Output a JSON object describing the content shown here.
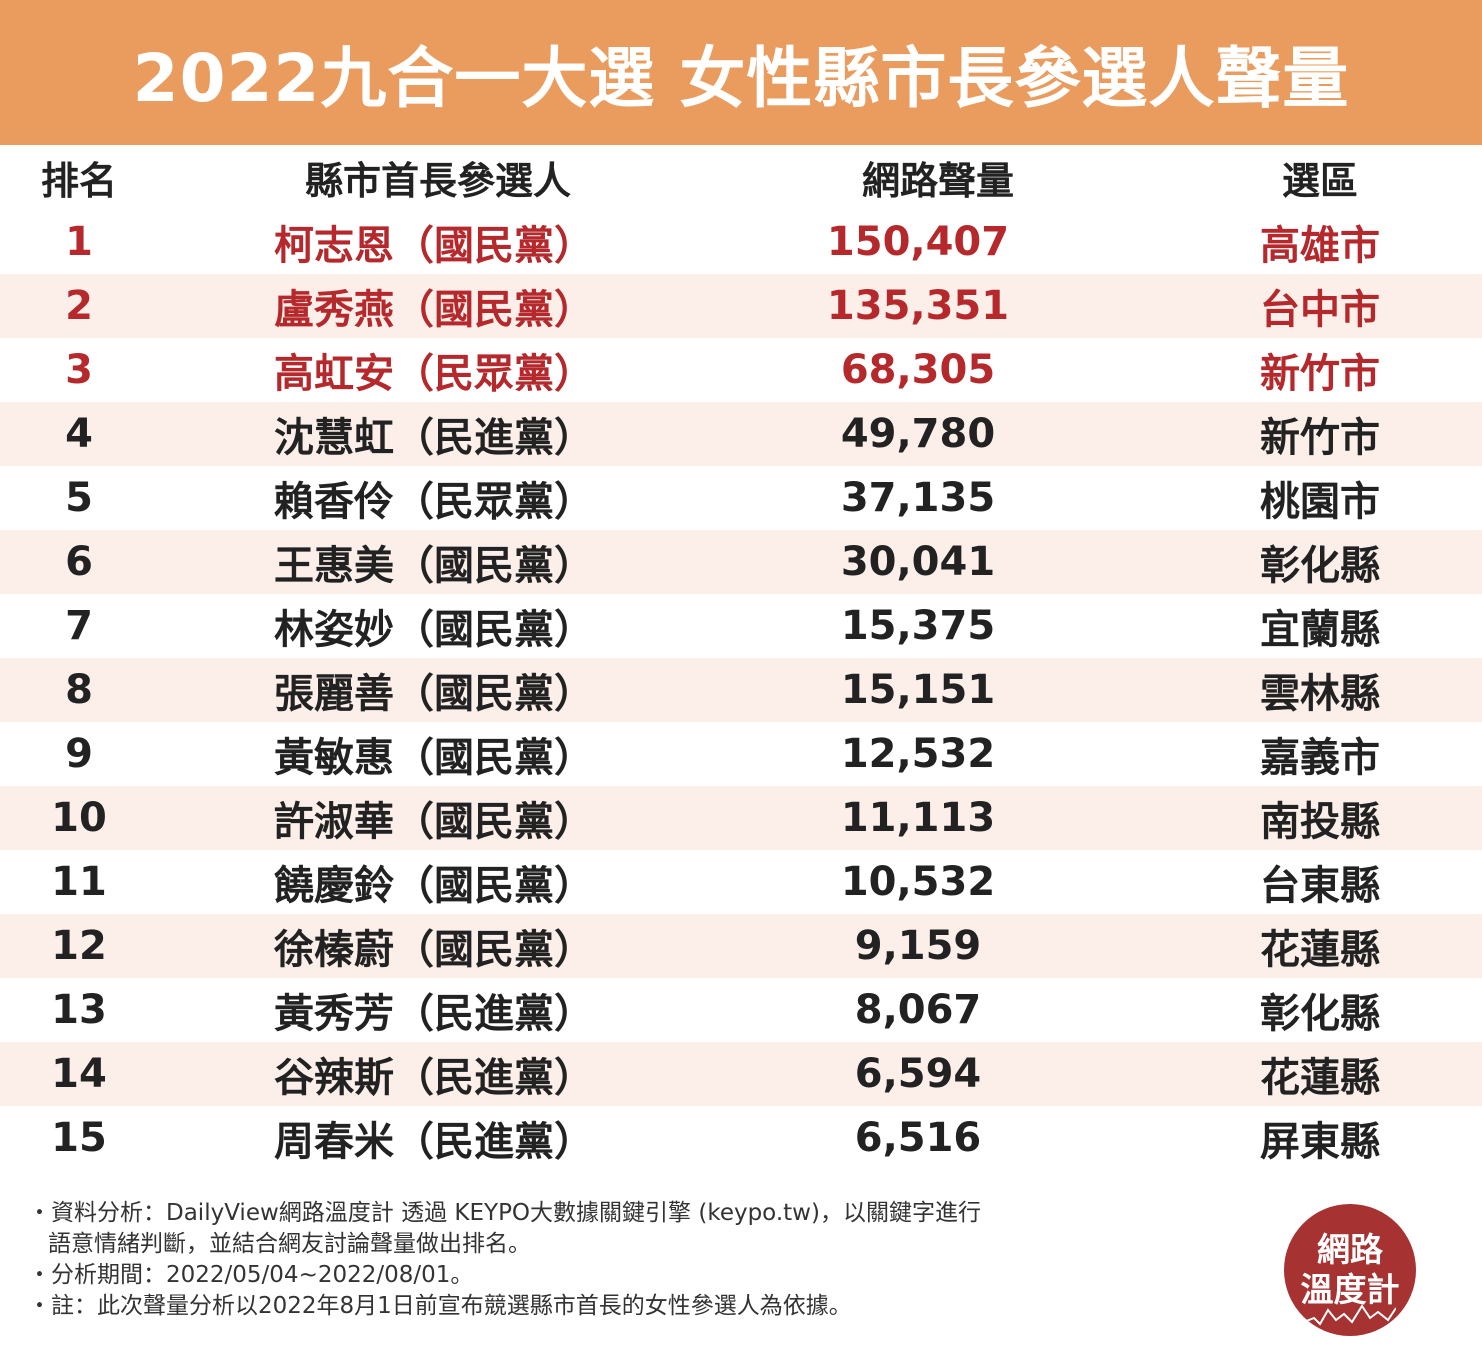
{
  "title": "2022九合一大選 女性縣市長參選人聲量",
  "headers": {
    "rank": "排名",
    "candidate": "縣市首長參選人",
    "volume": "網路聲量",
    "district": "選區"
  },
  "rows": [
    {
      "rank": "1",
      "name": "柯志恩（國民黨）",
      "volume": "150,407",
      "district": "高雄市"
    },
    {
      "rank": "2",
      "name": "盧秀燕（國民黨）",
      "volume": "135,351",
      "district": "台中市"
    },
    {
      "rank": "3",
      "name": "高虹安（民眾黨）",
      "volume": "68,305",
      "district": "新竹市"
    },
    {
      "rank": "4",
      "name": "沈慧虹（民進黨）",
      "volume": "49,780",
      "district": "新竹市"
    },
    {
      "rank": "5",
      "name": "賴香伶（民眾黨）",
      "volume": "37,135",
      "district": "桃園市"
    },
    {
      "rank": "6",
      "name": "王惠美（國民黨）",
      "volume": "30,041",
      "district": "彰化縣"
    },
    {
      "rank": "7",
      "name": "林姿妙（國民黨）",
      "volume": "15,375",
      "district": "宜蘭縣"
    },
    {
      "rank": "8",
      "name": "張麗善（國民黨）",
      "volume": "15,151",
      "district": "雲林縣"
    },
    {
      "rank": "9",
      "name": "黃敏惠（國民黨）",
      "volume": "12,532",
      "district": "嘉義市"
    },
    {
      "rank": "10",
      "name": "許淑華（國民黨）",
      "volume": "11,113",
      "district": "南投縣"
    },
    {
      "rank": "11",
      "name": "饒慶鈴（國民黨）",
      "volume": "10,532",
      "district": "台東縣"
    },
    {
      "rank": "12",
      "name": "徐榛蔚（國民黨）",
      "volume": "9,159",
      "district": "花蓮縣"
    },
    {
      "rank": "13",
      "name": "黃秀芳（民進黨）",
      "volume": "8,067",
      "district": "彰化縣"
    },
    {
      "rank": "14",
      "name": "谷辣斯（民進黨）",
      "volume": "6,594",
      "district": "花蓮縣"
    },
    {
      "rank": "15",
      "name": "周春米（民進黨）",
      "volume": "6,516",
      "district": "屏東縣"
    }
  ],
  "notes": {
    "line1": "・資料分析：DailyView網路溫度計 透過 KEYPO大數據關鍵引擎 (keypo.tw)，以關鍵字進行",
    "line1b": "語意情緒判斷，並結合網友討論聲量做出排名。",
    "line2": "・分析期間：2022/05/04~2022/08/01。",
    "line3": "・註：此次聲量分析以2022年8月1日前宣布競選縣市首長的女性參選人為依據。"
  },
  "logo": {
    "line1": "網路",
    "line2": "溫度計"
  },
  "colors": {
    "title_bg": "#ea9b5e",
    "highlight": "#b5282b",
    "row_alt": "#fcefea",
    "logo_bg": "#a63232"
  }
}
